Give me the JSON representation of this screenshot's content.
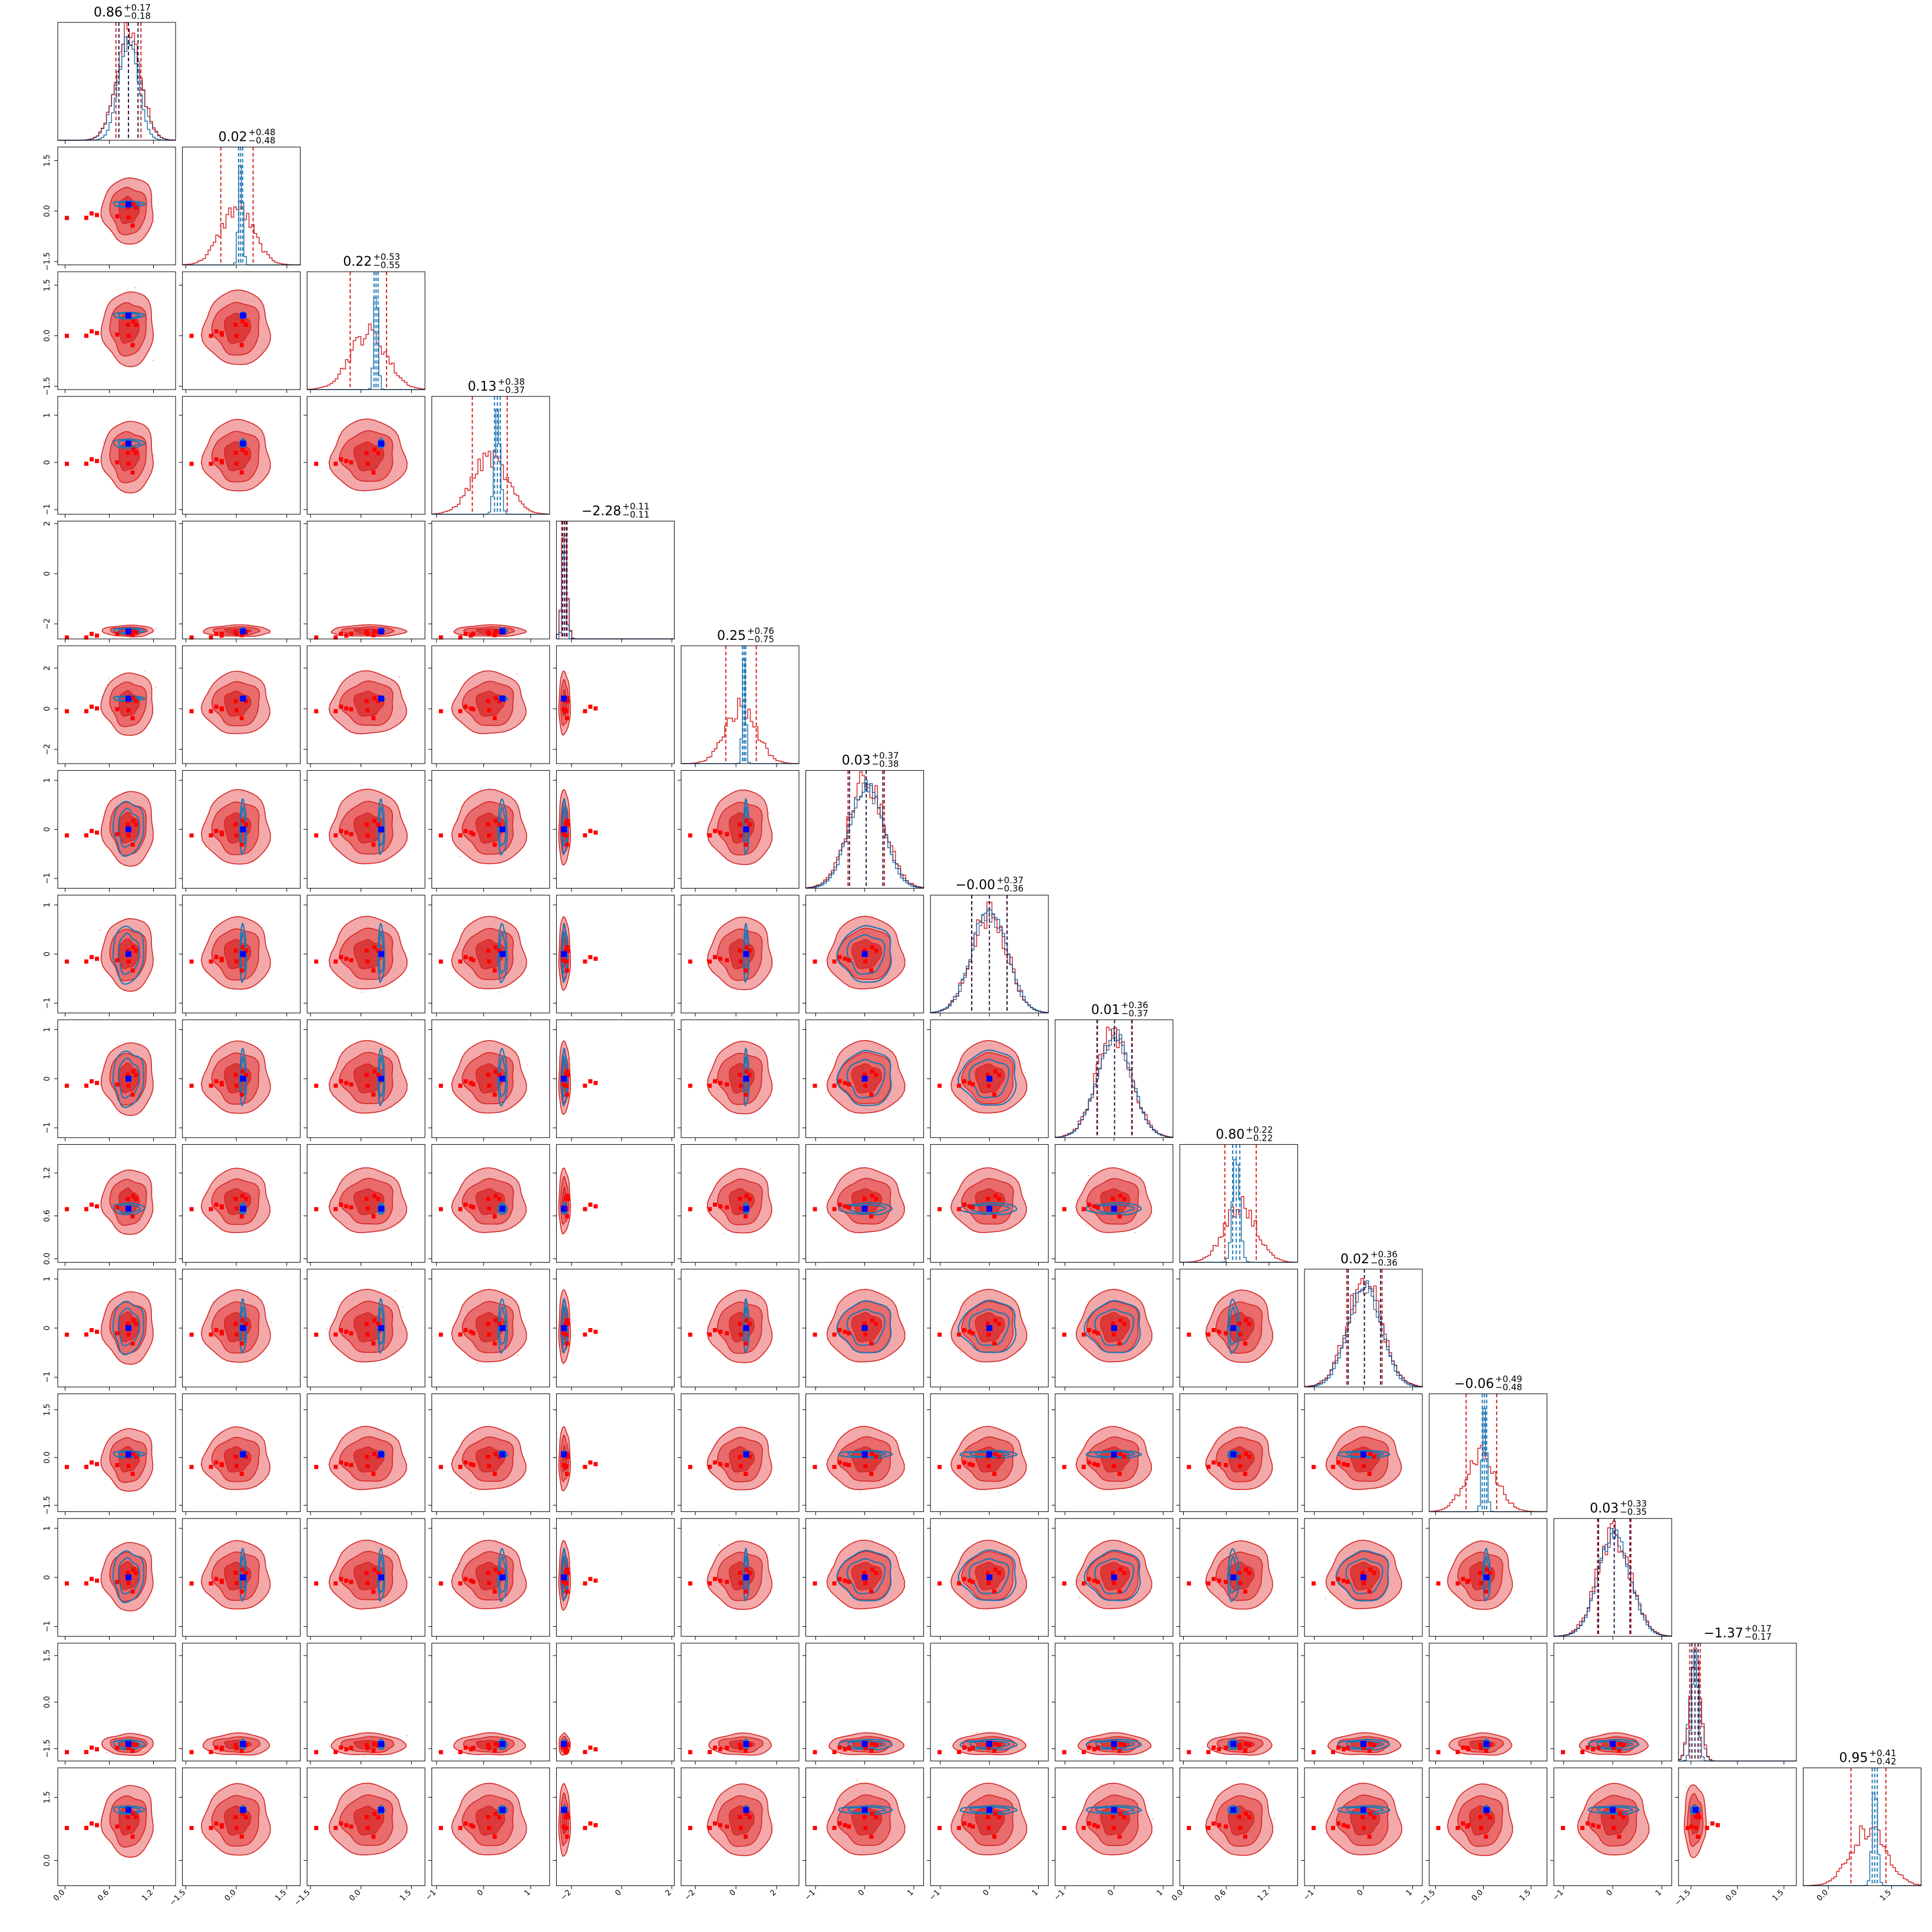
{
  "chart_data": {
    "type": "corner",
    "n_params": 15,
    "colors": {
      "red": "#d62728",
      "blue": "#1f77b4",
      "truth": "#0000ff",
      "median_line": "#2b1d4a",
      "scatter": "#ff0000"
    },
    "marginal_titles": [
      {
        "median": "0.86",
        "plus": "+0.17",
        "minus": "−0.18"
      },
      {
        "median": "0.02",
        "plus": "+0.48",
        "minus": "−0.48"
      },
      {
        "median": "0.22",
        "plus": "+0.53",
        "minus": "−0.55"
      },
      {
        "median": "0.13",
        "plus": "+0.38",
        "minus": "−0.37"
      },
      {
        "median": "−2.28",
        "plus": "+0.11",
        "minus": "−0.11"
      },
      {
        "median": "0.25",
        "plus": "+0.76",
        "minus": "−0.75"
      },
      {
        "median": "0.03",
        "plus": "+0.37",
        "minus": "−0.38"
      },
      {
        "median": "−0.00",
        "plus": "+0.37",
        "minus": "−0.36"
      },
      {
        "median": "0.01",
        "plus": "+0.36",
        "minus": "−0.37"
      },
      {
        "median": "0.80",
        "plus": "+0.22",
        "minus": "−0.22"
      },
      {
        "median": "0.02",
        "plus": "+0.36",
        "minus": "−0.36"
      },
      {
        "median": "−0.06",
        "plus": "+0.49",
        "minus": "−0.48"
      },
      {
        "median": "0.03",
        "plus": "+0.33",
        "minus": "−0.35"
      },
      {
        "median": "−1.37",
        "plus": "+0.17",
        "minus": "−0.17"
      },
      {
        "median": "0.95",
        "plus": "+0.41",
        "minus": "−0.42"
      }
    ],
    "params": [
      {
        "range": [
          -0.1,
          1.5
        ],
        "ticks": [
          0.0,
          0.6,
          1.2
        ],
        "tick_labels": [
          "0.0",
          "0.6",
          "1.2"
        ],
        "mean": 0.86,
        "sd": 0.17,
        "blue_sd": 0.13,
        "truth": 0.86
      },
      {
        "range": [
          -1.6,
          1.9
        ],
        "ticks": [
          -1.5,
          0.0,
          1.5
        ],
        "tick_labels": [
          "−1.5",
          "0.0",
          "1.5"
        ],
        "mean": 0.02,
        "sd": 0.48,
        "blue_sd": 0.06,
        "truth": 0.2
      },
      {
        "range": [
          -1.6,
          1.9
        ],
        "ticks": [
          -1.5,
          0.0,
          1.5
        ],
        "tick_labels": [
          "−1.5",
          "0.0",
          "1.5"
        ],
        "mean": 0.22,
        "sd": 0.54,
        "blue_sd": 0.06,
        "truth": 0.6
      },
      {
        "range": [
          -1.1,
          1.4
        ],
        "ticks": [
          -1,
          0,
          1
        ],
        "tick_labels": [
          "−1",
          "0",
          "1"
        ],
        "mean": 0.13,
        "sd": 0.37,
        "blue_sd": 0.06,
        "truth": 0.4
      },
      {
        "range": [
          -2.6,
          2.1
        ],
        "ticks": [
          -2,
          0,
          2
        ],
        "tick_labels": [
          "−2",
          "0",
          "2"
        ],
        "mean": -2.28,
        "sd": 0.11,
        "blue_sd": 0.07,
        "truth": -2.3
      },
      {
        "range": [
          -2.7,
          3.1
        ],
        "ticks": [
          -2,
          0,
          2
        ],
        "tick_labels": [
          "−2",
          "0",
          "2"
        ],
        "mean": 0.25,
        "sd": 0.75,
        "blue_sd": 0.08,
        "truth": 0.5
      },
      {
        "range": [
          -1.2,
          1.2
        ],
        "ticks": [
          -1,
          0,
          1
        ],
        "tick_labels": [
          "−1",
          "0",
          "1"
        ],
        "mean": 0.03,
        "sd": 0.37,
        "blue_sd": 0.34,
        "truth": 0.0
      },
      {
        "range": [
          -1.2,
          1.2
        ],
        "ticks": [
          -1,
          0,
          1
        ],
        "tick_labels": [
          "−1",
          "0",
          "1"
        ],
        "mean": 0.0,
        "sd": 0.36,
        "blue_sd": 0.36,
        "truth": 0.0
      },
      {
        "range": [
          -1.2,
          1.2
        ],
        "ticks": [
          -1,
          0,
          1
        ],
        "tick_labels": [
          "−1",
          "0",
          "1"
        ],
        "mean": 0.01,
        "sd": 0.36,
        "blue_sd": 0.35,
        "truth": 0.0
      },
      {
        "range": [
          -0.05,
          1.6
        ],
        "ticks": [
          0.0,
          0.6,
          1.2
        ],
        "tick_labels": [
          "0.0",
          "0.6",
          "1.2"
        ],
        "mean": 0.8,
        "sd": 0.22,
        "blue_sd": 0.05,
        "truth": 0.7
      },
      {
        "range": [
          -1.2,
          1.2
        ],
        "ticks": [
          -1,
          0,
          1
        ],
        "tick_labels": [
          "−1",
          "0",
          "1"
        ],
        "mean": 0.02,
        "sd": 0.36,
        "blue_sd": 0.33,
        "truth": 0.0
      },
      {
        "range": [
          -1.7,
          2.0
        ],
        "ticks": [
          -1.5,
          0.0,
          1.5
        ],
        "tick_labels": [
          "−1.5",
          "0.0",
          "1.5"
        ],
        "mean": -0.06,
        "sd": 0.48,
        "blue_sd": 0.07,
        "truth": 0.1
      },
      {
        "range": [
          -1.2,
          1.2
        ],
        "ticks": [
          -1,
          0,
          1
        ],
        "tick_labels": [
          "−1",
          "0",
          "1"
        ],
        "mean": 0.03,
        "sd": 0.34,
        "blue_sd": 0.32,
        "truth": 0.0
      },
      {
        "range": [
          -1.9,
          1.9
        ],
        "ticks": [
          -1.5,
          0.0,
          1.5
        ],
        "tick_labels": [
          "−1.5",
          "0.0",
          "1.5"
        ],
        "mean": -1.37,
        "sd": 0.17,
        "blue_sd": 0.1,
        "truth": -1.35
      },
      {
        "range": [
          -0.6,
          2.2
        ],
        "ticks": [
          0.0,
          1.5
        ],
        "tick_labels": [
          "0.0",
          "1.5"
        ],
        "mean": 0.95,
        "sd": 0.415,
        "blue_sd": 0.06,
        "truth": 1.2
      }
    ]
  }
}
